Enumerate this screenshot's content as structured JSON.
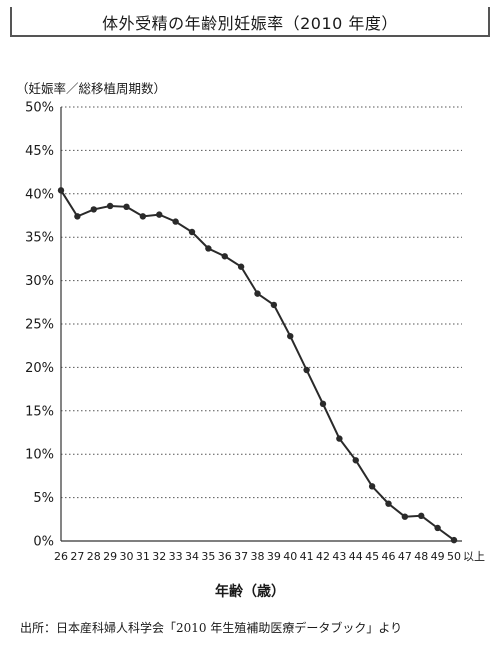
{
  "chart_data": {
    "type": "line",
    "title": "体外受精の年齢別妊娠率（2010 年度）",
    "ylabel": "（妊娠率／総移植周期数）",
    "xlabel": "年齢（歳）",
    "ylim": [
      0,
      50
    ],
    "grid": true,
    "yticks": [
      "0%",
      "5%",
      "10%",
      "15%",
      "20%",
      "25%",
      "30%",
      "35%",
      "40%",
      "45%",
      "50%"
    ],
    "categories": [
      "26",
      "27",
      "28",
      "29",
      "30",
      "31",
      "32",
      "33",
      "34",
      "35",
      "36",
      "37",
      "38",
      "39",
      "40",
      "41",
      "42",
      "43",
      "44",
      "45",
      "46",
      "47",
      "48",
      "49",
      "50"
    ],
    "x_last_suffix": "以上",
    "series": [
      {
        "values": [
          40.4,
          37.4,
          38.2,
          38.6,
          38.5,
          37.4,
          37.6,
          36.8,
          35.6,
          33.7,
          32.8,
          31.6,
          28.5,
          27.2,
          23.6,
          19.7,
          15.8,
          11.8,
          9.3,
          6.3,
          4.3,
          2.8,
          2.9,
          1.5,
          0.1
        ]
      }
    ]
  },
  "footer": {
    "source": "出所：日本産科婦人科学会「2010 年生殖補助医療データブック」より"
  }
}
